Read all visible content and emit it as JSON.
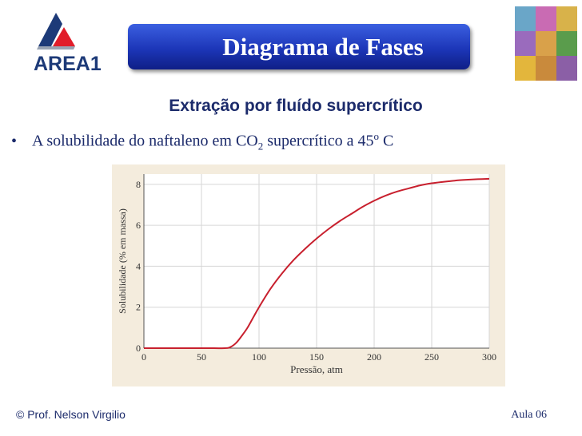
{
  "header": {
    "logo_text": "AREA1",
    "title": "Diagrama de Fases"
  },
  "subtitle": "Extração por fluído supercrítico",
  "bullet": {
    "text_before": "A solubilidade do naftaleno em CO",
    "subscript": "2",
    "text_middle": " supercrítico a 45",
    "superscript": "o",
    "text_after": " C"
  },
  "chart_data": {
    "type": "line",
    "xlabel": "Pressão, atm",
    "ylabel": "Solubilidade (% em massa)",
    "xlim": [
      0,
      300
    ],
    "ylim": [
      0,
      8.5
    ],
    "xticks": [
      0,
      50,
      100,
      150,
      200,
      250,
      300
    ],
    "yticks": [
      0,
      2,
      4,
      6,
      8
    ],
    "grid": true,
    "series": [
      {
        "color": "#c8202e",
        "x": [
          0,
          50,
          70,
          75,
          80,
          85,
          90,
          95,
          100,
          110,
          120,
          130,
          140,
          150,
          160,
          170,
          180,
          190,
          200,
          210,
          220,
          230,
          240,
          250,
          260,
          270,
          280,
          290,
          300
        ],
        "y": [
          0,
          0,
          0,
          0.05,
          0.25,
          0.6,
          1.0,
          1.5,
          2.0,
          2.9,
          3.65,
          4.3,
          4.85,
          5.35,
          5.8,
          6.2,
          6.55,
          6.9,
          7.2,
          7.45,
          7.65,
          7.8,
          7.95,
          8.05,
          8.12,
          8.18,
          8.22,
          8.25,
          8.27
        ]
      }
    ]
  },
  "footer": {
    "author": "© Prof. Nelson Virgilio",
    "lesson": "Aula 06"
  },
  "colors": {
    "banner": "#1c36b8",
    "text": "#1c2b6b",
    "chart_background": "#f4ecdd",
    "curve": "#c8202e"
  }
}
